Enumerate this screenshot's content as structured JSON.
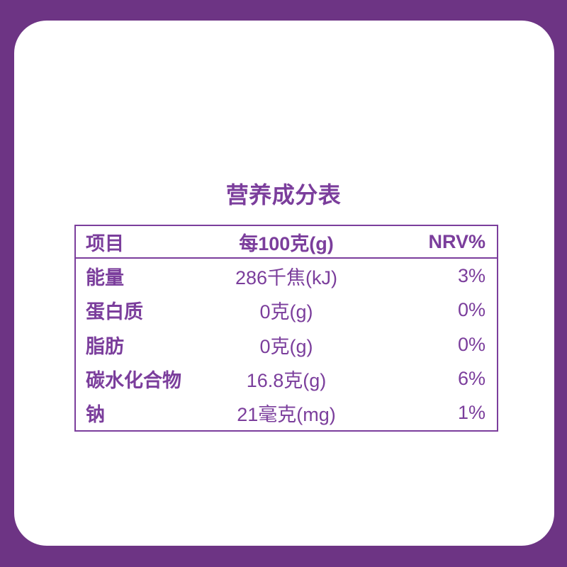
{
  "colors": {
    "frame_purple": "#6d3484",
    "panel_white": "#ffffff",
    "text_purple": "#7b3e9c"
  },
  "title": "营养成分表",
  "table": {
    "headers": {
      "item": "项目",
      "per100g": "每100克(g)",
      "nrv": "NRV%"
    },
    "rows": [
      {
        "item": "能量",
        "value": "286千焦(kJ)",
        "nrv": "3%"
      },
      {
        "item": "蛋白质",
        "value": "0克(g)",
        "nrv": "0%"
      },
      {
        "item": "脂肪",
        "value": "0克(g)",
        "nrv": "0%"
      },
      {
        "item": "碳水化合物",
        "value": "16.8克(g)",
        "nrv": "6%"
      },
      {
        "item": "钠",
        "value": "21毫克(mg)",
        "nrv": "1%"
      }
    ]
  }
}
